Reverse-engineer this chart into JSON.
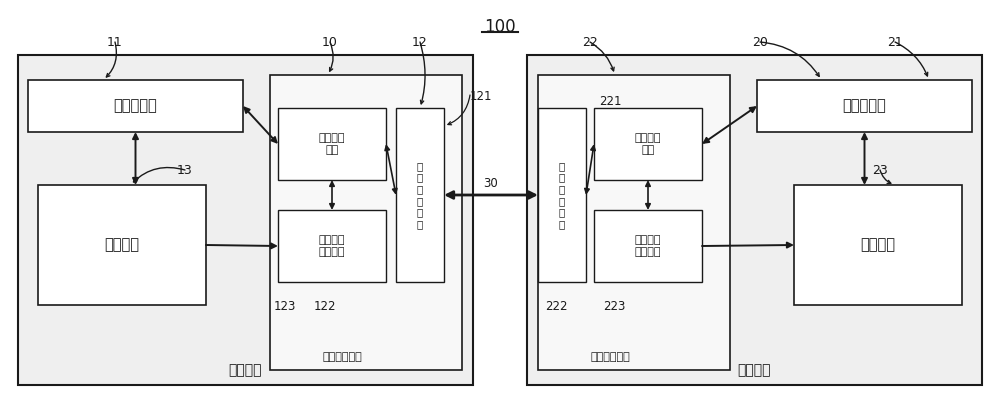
{
  "bg_color": "#ffffff",
  "label_100": "100",
  "chip1_label": "第一芯片",
  "chip2_label": "第二芯片",
  "proc1_label": "第一处理器",
  "proc2_label": "第二处理器",
  "flash1_label": "第一闪存",
  "flash2_label": "第二闪存",
  "comm1_label": "第一通信接口",
  "comm2_label": "第二通信接口",
  "ctrl1_label": "第一控制\n模块",
  "ctrl2_label": "第二控制\n模块",
  "ring1_label": "第一环状\n缓冲模块",
  "ring2_label": "第二环状\n缓冲模块",
  "bus1_label": "第\n一\n总\n线\n接\n口",
  "bus2_label": "第\n二\n总\n线\n接\n口",
  "label_10": "10",
  "label_11": "11",
  "label_12": "12",
  "label_13": "13",
  "label_20": "20",
  "label_21": "21",
  "label_22": "22",
  "label_23": "23",
  "label_30": "30",
  "label_121": "121",
  "label_122": "122",
  "label_123": "123",
  "label_221": "221",
  "label_222": "222",
  "label_223": "223",
  "lc": "#1a1a1a",
  "chip_fill": "#e8e8e8",
  "box_fill": "#ffffff",
  "comm_fill": "#f0f0f0"
}
